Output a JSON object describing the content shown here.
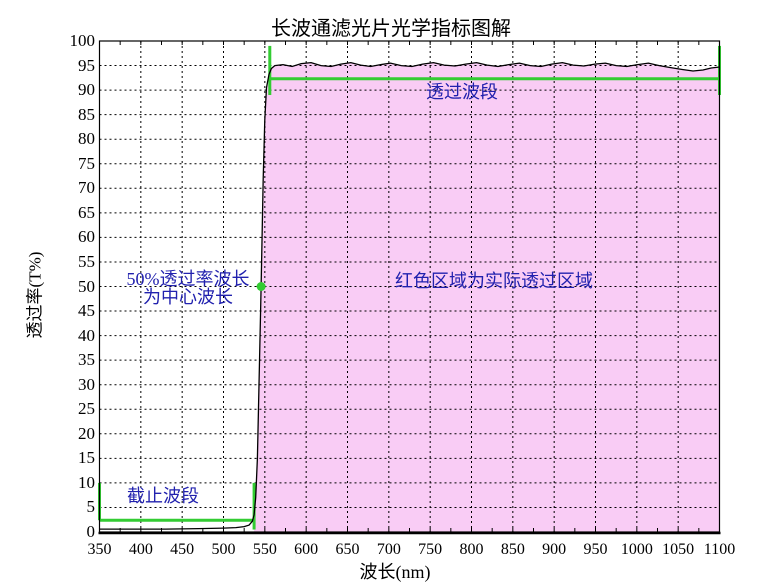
{
  "colors": {
    "pass_region_fill": "#F9CCF5",
    "bracket_green": "#33CC33",
    "annotation_blue": "#2121AE",
    "curve": "#000000",
    "grid": "#000000",
    "axis": "#000000"
  },
  "chart_data": {
    "type": "area",
    "title": "长波通滤光片光学指标图解",
    "xlabel": "波长(nm)",
    "ylabel": "透过率(T%)",
    "xlim": [
      350,
      1100
    ],
    "ylim": [
      0,
      100
    ],
    "grid": "dashed",
    "x_ticks": [
      350,
      400,
      450,
      500,
      550,
      600,
      650,
      700,
      750,
      800,
      850,
      900,
      950,
      1000,
      1050,
      1100
    ],
    "y_ticks": [
      0,
      5,
      10,
      15,
      20,
      25,
      30,
      35,
      40,
      45,
      50,
      55,
      60,
      65,
      70,
      75,
      80,
      85,
      90,
      95,
      100
    ],
    "x_minor_tick_step_nm": 25,
    "series": [
      {
        "name": "transmittance-curve",
        "points": [
          [
            350,
            0.6
          ],
          [
            390,
            0.6
          ],
          [
            430,
            0.6
          ],
          [
            470,
            0.7
          ],
          [
            500,
            0.8
          ],
          [
            515,
            0.9
          ],
          [
            525,
            1.1
          ],
          [
            531,
            1.4
          ],
          [
            535,
            2.2
          ],
          [
            537,
            3.5
          ],
          [
            539,
            7
          ],
          [
            541,
            15
          ],
          [
            543,
            30
          ],
          [
            545,
            46
          ],
          [
            546,
            54
          ],
          [
            548,
            72
          ],
          [
            550,
            84
          ],
          [
            552,
            90.5
          ],
          [
            555,
            93.2
          ],
          [
            558,
            94.4
          ],
          [
            562,
            95.0
          ],
          [
            572,
            95.2
          ],
          [
            583,
            94.8
          ],
          [
            594,
            95.4
          ],
          [
            606,
            95.6
          ],
          [
            618,
            95.0
          ],
          [
            630,
            94.8
          ],
          [
            642,
            95.3
          ],
          [
            654,
            95.6
          ],
          [
            666,
            95.1
          ],
          [
            678,
            94.8
          ],
          [
            690,
            95.2
          ],
          [
            702,
            95.5
          ],
          [
            715,
            95.0
          ],
          [
            728,
            94.8
          ],
          [
            741,
            95.3
          ],
          [
            754,
            95.6
          ],
          [
            767,
            95.1
          ],
          [
            780,
            94.9
          ],
          [
            793,
            95.3
          ],
          [
            806,
            95.6
          ],
          [
            819,
            95.1
          ],
          [
            832,
            94.8
          ],
          [
            845,
            95.2
          ],
          [
            858,
            95.5
          ],
          [
            871,
            95.0
          ],
          [
            884,
            94.8
          ],
          [
            897,
            95.3
          ],
          [
            910,
            95.6
          ],
          [
            923,
            95.1
          ],
          [
            936,
            94.9
          ],
          [
            949,
            95.3
          ],
          [
            962,
            95.5
          ],
          [
            975,
            95.0
          ],
          [
            988,
            94.8
          ],
          [
            1001,
            95.2
          ],
          [
            1014,
            95.5
          ],
          [
            1027,
            95.0
          ],
          [
            1040,
            94.6
          ],
          [
            1055,
            94.2
          ],
          [
            1068,
            93.9
          ],
          [
            1080,
            94.1
          ],
          [
            1090,
            94.5
          ],
          [
            1100,
            94.7
          ]
        ]
      }
    ],
    "fill_region": {
      "from_nm": 537,
      "to_nm": 1100,
      "baseline_percent": 0
    },
    "marker_point": {
      "x_nm": 545.5,
      "y_percent": 50
    },
    "brackets": [
      {
        "name": "passband",
        "label": "透过波段",
        "from_nm": 556,
        "to_nm": 1100,
        "line_percent": 92.3,
        "left_tick_percent": [
          89,
          99
        ],
        "right_tick_percent": [
          89,
          99
        ]
      },
      {
        "name": "cutoff-band",
        "label": "截止波段",
        "from_nm": 350,
        "to_nm": 537,
        "line_percent": 2.4,
        "left_tick_percent": [
          2.4,
          10
        ],
        "right_tick_percent": [
          0.5,
          10
        ]
      }
    ],
    "annotations": {
      "center_wavelength": {
        "line1": "50%透过率波长",
        "line2": "为中心波长"
      },
      "red_region": {
        "text": "红色区域为实际透过区域"
      }
    }
  }
}
